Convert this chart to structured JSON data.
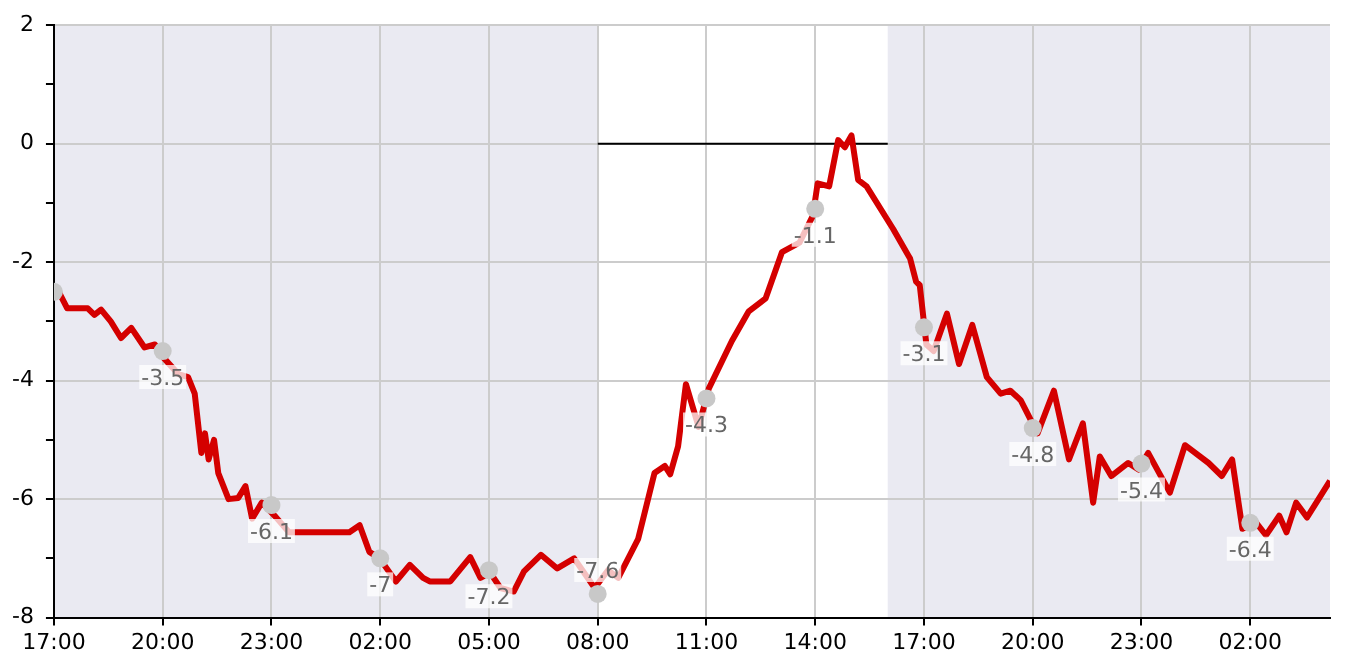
{
  "chart_data": {
    "type": "line",
    "xlim": [
      "2000-01-01T17:00",
      "2000-01-03T04:12"
    ],
    "xticks": [
      {
        "value": "2000-01-01T17:00",
        "label": "17:00"
      },
      {
        "value": "2000-01-01T20:00",
        "label": "20:00"
      },
      {
        "value": "2000-01-01T23:00",
        "label": "23:00"
      },
      {
        "value": "2000-01-02T02:00",
        "label": "02:00"
      },
      {
        "value": "2000-01-02T05:00",
        "label": "05:00"
      },
      {
        "value": "2000-01-02T08:00",
        "label": "08:00"
      },
      {
        "value": "2000-01-02T11:00",
        "label": "11:00"
      },
      {
        "value": "2000-01-02T14:00",
        "label": "14:00"
      },
      {
        "value": "2000-01-02T17:00",
        "label": "17:00"
      },
      {
        "value": "2000-01-02T20:00",
        "label": "20:00"
      },
      {
        "value": "2000-01-02T23:00",
        "label": "23:00"
      },
      {
        "value": "2000-01-03T02:00",
        "label": "02:00"
      }
    ],
    "ylim": [
      -8,
      2
    ],
    "yticks": [
      -8,
      {
        "value": -7,
        "label": null
      },
      -6,
      {
        "value": -5,
        "label": null
      },
      -4,
      {
        "value": -3,
        "label": null
      },
      -2,
      {
        "value": -1,
        "label": null
      },
      0,
      {
        "value": 1,
        "label": null
      },
      2
    ],
    "grid": true,
    "bands": [
      {
        "axis": "x",
        "from": "2000-01-01T17:00",
        "to": "2000-01-02T08:00",
        "color": "#eaeaf2"
      },
      {
        "axis": "x",
        "from": "2000-01-02T16:00",
        "to": "2000-01-03T04:12",
        "color": "#eaeaf2"
      }
    ],
    "series": [
      {
        "type": "line",
        "color": "#d40000",
        "x": [
          "2000-01-01T17:08",
          "2000-01-01T17:22",
          "2000-01-01T17:56",
          "2000-01-01T18:07",
          "2000-01-01T18:18",
          "2000-01-01T18:34",
          "2000-01-01T18:51",
          "2000-01-01T19:08",
          "2000-01-01T19:30",
          "2000-01-01T19:47",
          "2000-01-01T20:02",
          "2000-01-01T20:26",
          "2000-01-01T20:42",
          "2000-01-01T20:53",
          "2000-01-01T21:04",
          "2000-01-01T21:10",
          "2000-01-01T21:16",
          "2000-01-01T21:25",
          "2000-01-01T21:32",
          "2000-01-01T21:49",
          "2000-01-01T22:05",
          "2000-01-01T22:17",
          "2000-01-01T22:28",
          "2000-01-01T22:44",
          "2000-01-01T23:07",
          "2000-01-01T23:29",
          "2000-01-01T23:46",
          "2000-01-02T01:09",
          "2000-01-02T01:26",
          "2000-01-02T01:42",
          "2000-01-02T01:59",
          "2000-01-02T02:26",
          "2000-01-02T02:49",
          "2000-01-02T03:11",
          "2000-01-02T03:22",
          "2000-01-02T03:56",
          "2000-01-02T04:29",
          "2000-01-02T04:46",
          "2000-01-02T05:02",
          "2000-01-02T05:19",
          "2000-01-02T05:41",
          "2000-01-02T05:58",
          "2000-01-02T06:26",
          "2000-01-02T06:53",
          "2000-01-02T07:21",
          "2000-01-02T07:55",
          "2000-01-02T08:17",
          "2000-01-02T08:34",
          "2000-01-02T09:07",
          "2000-01-02T09:34",
          "2000-01-02T09:51",
          "2000-01-02T10:00",
          "2000-01-02T10:13",
          "2000-01-02T10:26",
          "2000-01-02T10:47",
          "2000-01-02T11:04",
          "2000-01-02T11:42",
          "2000-01-02T12:10",
          "2000-01-02T12:38",
          "2000-01-02T13:05",
          "2000-01-02T13:34",
          "2000-01-02T13:56",
          "2000-01-02T14:04",
          "2000-01-02T14:23",
          "2000-01-02T14:38",
          "2000-01-02T14:49",
          "2000-01-02T15:00",
          "2000-01-02T15:11",
          "2000-01-02T15:25",
          "2000-01-02T16:09",
          "2000-01-02T16:37",
          "2000-01-02T16:47",
          "2000-01-02T16:53",
          "2000-01-02T17:04",
          "2000-01-02T17:16",
          "2000-01-02T17:38",
          "2000-01-02T17:58",
          "2000-01-02T18:20",
          "2000-01-02T18:44",
          "2000-01-02T19:07",
          "2000-01-02T19:23",
          "2000-01-02T19:40",
          "2000-01-02T20:08",
          "2000-01-02T20:35",
          "2000-01-02T21:00",
          "2000-01-02T21:23",
          "2000-01-02T21:40",
          "2000-01-02T21:51",
          "2000-01-02T22:10",
          "2000-01-02T22:38",
          "2000-01-02T22:55",
          "2000-01-02T23:11",
          "2000-01-02T23:47",
          "2000-01-03T00:12",
          "2000-01-03T00:51",
          "2000-01-03T01:13",
          "2000-01-03T01:30",
          "2000-01-03T01:47",
          "2000-01-03T02:09",
          "2000-01-03T02:26",
          "2000-01-03T02:48",
          "2000-01-03T03:00",
          "2000-01-03T03:16",
          "2000-01-03T03:34",
          "2000-01-03T04:12"
        ],
        "values": [
          -2.5,
          -2.78,
          -2.78,
          -2.89,
          -2.8,
          -3.0,
          -3.28,
          -3.11,
          -3.44,
          -3.39,
          -3.62,
          -3.89,
          -3.94,
          -4.22,
          -5.22,
          -4.89,
          -5.33,
          -5.0,
          -5.56,
          -6.0,
          -5.98,
          -5.78,
          -6.33,
          -6.06,
          -6.3,
          -6.56,
          -6.56,
          -6.56,
          -6.44,
          -6.89,
          -7.0,
          -7.39,
          -7.11,
          -7.33,
          -7.39,
          -7.39,
          -6.98,
          -7.33,
          -7.24,
          -7.5,
          -7.56,
          -7.22,
          -6.94,
          -7.17,
          -7.0,
          -7.5,
          -7.2,
          -7.33,
          -6.67,
          -5.56,
          -5.44,
          -5.58,
          -5.11,
          -4.06,
          -4.78,
          -4.13,
          -3.33,
          -2.83,
          -2.61,
          -1.83,
          -1.67,
          -1.22,
          -0.67,
          -0.72,
          0.06,
          -0.06,
          0.14,
          -0.61,
          -0.72,
          -1.44,
          -1.94,
          -2.33,
          -2.39,
          -3.39,
          -3.5,
          -2.87,
          -3.72,
          -3.06,
          -3.94,
          -4.22,
          -4.17,
          -4.33,
          -4.89,
          -4.17,
          -5.33,
          -4.72,
          -6.06,
          -5.28,
          -5.61,
          -5.39,
          -5.5,
          -5.22,
          -5.89,
          -5.09,
          -5.39,
          -5.61,
          -5.33,
          -6.5,
          -6.39,
          -6.61,
          -6.28,
          -6.56,
          -6.06,
          -6.31,
          -5.69
        ]
      },
      {
        "type": "line",
        "color": "#000000",
        "x": [
          "2000-01-02T08:00",
          "2000-01-02T16:00"
        ],
        "values": [
          0,
          0
        ]
      },
      {
        "type": "scatter",
        "color": "#c8c8c8",
        "marker": "circle",
        "x": [
          "2000-01-01T17:00",
          "2000-01-01T20:00",
          "2000-01-01T23:00",
          "2000-01-02T02:00",
          "2000-01-02T05:00",
          "2000-01-02T08:00",
          "2000-01-02T11:00",
          "2000-01-02T14:00",
          "2000-01-02T17:00",
          "2000-01-02T20:00",
          "2000-01-02T23:00",
          "2000-01-03T02:00"
        ],
        "values": [
          -2.5,
          -3.5,
          -6.1,
          -7,
          -7.2,
          -7.6,
          -4.3,
          -1.1,
          -3.1,
          -4.8,
          -5.4,
          -6.4
        ],
        "value_labels": [
          null,
          "-3.5",
          "-6.1",
          "-7",
          "-7.2",
          "-7.6",
          "-4.3",
          "-1.1",
          "-3.1",
          "-4.8",
          "-5.4",
          "-6.4"
        ]
      }
    ]
  }
}
